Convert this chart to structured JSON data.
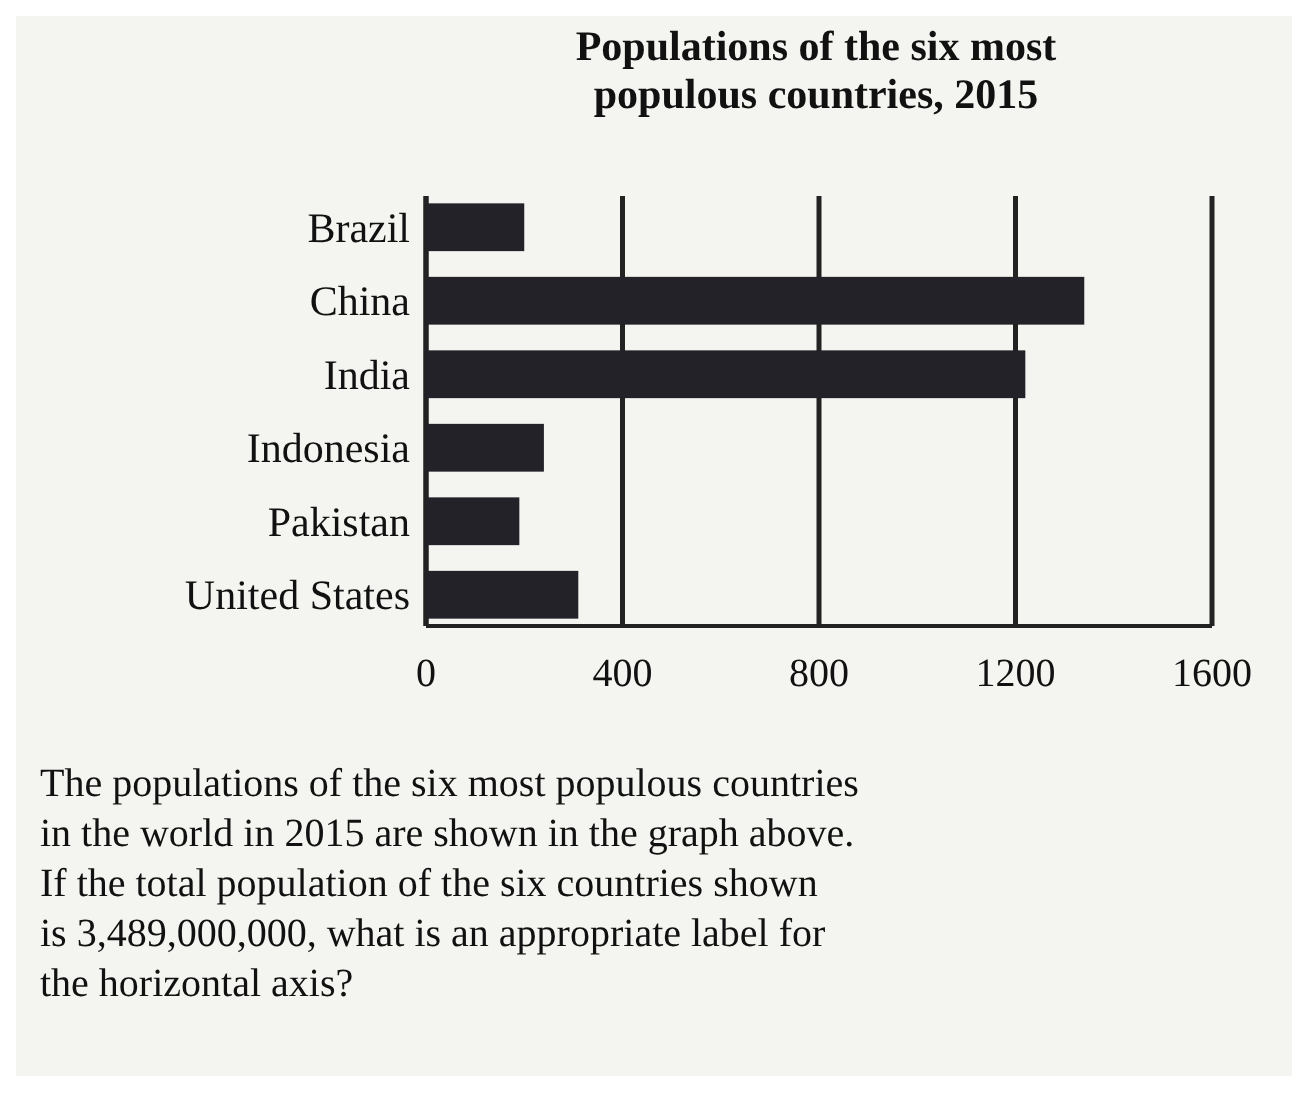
{
  "chart_data": {
    "type": "bar",
    "orientation": "horizontal",
    "title": "Populations of the six most populous countries, 2015",
    "categories": [
      "Brazil",
      "China",
      "India",
      "Indonesia",
      "Pakistan",
      "United States"
    ],
    "values": [
      200,
      1340,
      1220,
      240,
      190,
      310
    ],
    "color": "#222228",
    "xlim": [
      0,
      1600
    ],
    "xticks": [
      0,
      400,
      800,
      1200,
      1600
    ],
    "grid": "x",
    "annotations": [
      "The populations of the six most populous countries in the world in 2015 are shown in the graph above. If the total population of the six countries shown is 3,489,000,000, what is an appropriate label for the horizontal axis?"
    ]
  }
}
